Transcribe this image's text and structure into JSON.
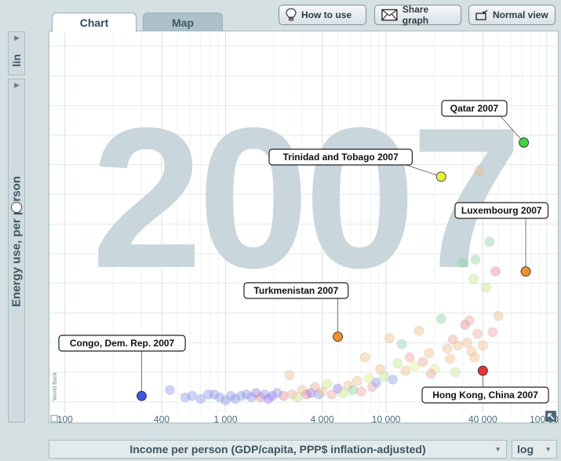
{
  "tabs": [
    {
      "label": "Chart",
      "active": true
    },
    {
      "label": "Map",
      "active": false
    }
  ],
  "toolbar": {
    "how_to_use": "How to use",
    "share_graph": "Share graph",
    "normal_view": "Normal view"
  },
  "side": {
    "scale_label": "lin"
  },
  "axis_selectors": {
    "x_label": "Income per person (GDP/capita, PPP$ inflation-adjusted)",
    "x_scale": "log"
  },
  "watermark": {
    "year": "2007",
    "source": "World Bank"
  },
  "colors": {
    "accent": "#4a6a78",
    "panel": "#d5e0e3"
  },
  "chart_data": {
    "type": "scatter",
    "xlabel": "Income per person (GDP/capita, PPP$ inflation-adjusted)",
    "ylabel": "Energy use, per person",
    "x_scale": "log",
    "xlim": [
      80,
      120000
    ],
    "ylim": [
      -1.5,
      25
    ],
    "x_ticks": [
      100,
      400,
      1000,
      4000,
      10000,
      40000,
      100000
    ],
    "x_tick_labels": [
      "100",
      "400",
      "1 000",
      "4 000",
      "10 000",
      "40 000",
      "100 000"
    ],
    "y_ticks": [
      0,
      2,
      4,
      6,
      8,
      10,
      12,
      14,
      16,
      18,
      20,
      22,
      24
    ],
    "grid": true,
    "highlighted": [
      {
        "label": "Qatar 2007",
        "x": 72000,
        "y": 17.5,
        "color": "#3ed43a"
      },
      {
        "label": "Trinidad and Tobago 2007",
        "x": 22000,
        "y": 15.2,
        "color": "#e9f23a"
      },
      {
        "label": "Luxembourg 2007",
        "x": 74000,
        "y": 8.8,
        "color": "#f28f2e"
      },
      {
        "label": "Turkmenistan 2007",
        "x": 5000,
        "y": 4.4,
        "color": "#f28f2e"
      },
      {
        "label": "Congo, Dem. Rep. 2007",
        "x": 300,
        "y": 0.4,
        "color": "#3d55e0"
      },
      {
        "label": "Hong Kong, China 2007",
        "x": 40000,
        "y": 2.1,
        "color": "#e6323a"
      }
    ],
    "background_points": [
      {
        "x": 450,
        "y": 0.8,
        "c": "#8e9cf0"
      },
      {
        "x": 560,
        "y": 0.3,
        "c": "#8e9cf0"
      },
      {
        "x": 620,
        "y": 0.4,
        "c": "#8e9cf0"
      },
      {
        "x": 700,
        "y": 0.2,
        "c": "#8e9cf0"
      },
      {
        "x": 780,
        "y": 0.5,
        "c": "#8e9cf0"
      },
      {
        "x": 850,
        "y": 0.5,
        "c": "#8e9cf0"
      },
      {
        "x": 920,
        "y": 0.3,
        "c": "#8e9cf0"
      },
      {
        "x": 1000,
        "y": 0.1,
        "c": "#8e9cf0"
      },
      {
        "x": 1080,
        "y": 0.4,
        "c": "#8e9cf0"
      },
      {
        "x": 1150,
        "y": 0.2,
        "c": "#8e9cf0"
      },
      {
        "x": 1250,
        "y": 0.4,
        "c": "#8e9cf0"
      },
      {
        "x": 1350,
        "y": 0.5,
        "c": "#8e9cf0"
      },
      {
        "x": 1450,
        "y": 0.3,
        "c": "#8e9cf0"
      },
      {
        "x": 1550,
        "y": 0.6,
        "c": "#9b7ef0"
      },
      {
        "x": 1650,
        "y": 0.3,
        "c": "#e88a9a"
      },
      {
        "x": 1750,
        "y": 0.5,
        "c": "#8e9cf0"
      },
      {
        "x": 1850,
        "y": 0.2,
        "c": "#9b7ef0"
      },
      {
        "x": 1950,
        "y": 0.4,
        "c": "#9b7ef0"
      },
      {
        "x": 2100,
        "y": 0.6,
        "c": "#8e9cf0"
      },
      {
        "x": 2300,
        "y": 0.4,
        "c": "#e88a9a"
      },
      {
        "x": 2500,
        "y": 1.8,
        "c": "#f4c08a"
      },
      {
        "x": 2600,
        "y": 0.5,
        "c": "#f4a8a0"
      },
      {
        "x": 2800,
        "y": 0.3,
        "c": "#c7e88a"
      },
      {
        "x": 3000,
        "y": 0.8,
        "c": "#f4c08a"
      },
      {
        "x": 3200,
        "y": 0.5,
        "c": "#e88a9a"
      },
      {
        "x": 3400,
        "y": 0.6,
        "c": "#9b7ef0"
      },
      {
        "x": 3600,
        "y": 1.0,
        "c": "#f4a8a0"
      },
      {
        "x": 3800,
        "y": 0.5,
        "c": "#8e9cf0"
      },
      {
        "x": 4000,
        "y": 0.7,
        "c": "#f4c08a"
      },
      {
        "x": 4300,
        "y": 1.2,
        "c": "#c7e88a"
      },
      {
        "x": 4600,
        "y": 0.5,
        "c": "#f4a8a0"
      },
      {
        "x": 5000,
        "y": 0.9,
        "c": "#9b7ef0"
      },
      {
        "x": 5400,
        "y": 0.6,
        "c": "#c7e88a"
      },
      {
        "x": 5800,
        "y": 1.1,
        "c": "#f4c08a"
      },
      {
        "x": 6200,
        "y": 0.8,
        "c": "#8ed8a0"
      },
      {
        "x": 6600,
        "y": 1.4,
        "c": "#f4c08a"
      },
      {
        "x": 7000,
        "y": 0.7,
        "c": "#f4a8a0"
      },
      {
        "x": 7400,
        "y": 3.0,
        "c": "#f4c08a"
      },
      {
        "x": 7800,
        "y": 1.6,
        "c": "#e8f08a"
      },
      {
        "x": 8200,
        "y": 1.0,
        "c": "#f4a8a0"
      },
      {
        "x": 8700,
        "y": 1.3,
        "c": "#8e9cf0"
      },
      {
        "x": 9200,
        "y": 2.2,
        "c": "#f4c08a"
      },
      {
        "x": 9800,
        "y": 1.7,
        "c": "#c7e88a"
      },
      {
        "x": 10500,
        "y": 4.3,
        "c": "#f4c08a"
      },
      {
        "x": 11000,
        "y": 1.5,
        "c": "#8e9cf0"
      },
      {
        "x": 11800,
        "y": 2.6,
        "c": "#c7e88a"
      },
      {
        "x": 12500,
        "y": 3.9,
        "c": "#8ed8a0"
      },
      {
        "x": 13200,
        "y": 2.1,
        "c": "#f4c08a"
      },
      {
        "x": 14000,
        "y": 3.0,
        "c": "#f4a8a0"
      },
      {
        "x": 15000,
        "y": 2.4,
        "c": "#e8f08a"
      },
      {
        "x": 16000,
        "y": 4.8,
        "c": "#f4c08a"
      },
      {
        "x": 17000,
        "y": 2.7,
        "c": "#f4a8a0"
      },
      {
        "x": 18500,
        "y": 3.3,
        "c": "#f4c08a"
      },
      {
        "x": 20000,
        "y": 2.2,
        "c": "#e8f08a"
      },
      {
        "x": 22000,
        "y": 5.6,
        "c": "#8ed8a0"
      },
      {
        "x": 24000,
        "y": 3.6,
        "c": "#f4c08a"
      },
      {
        "x": 26000,
        "y": 4.2,
        "c": "#f4a8a0"
      },
      {
        "x": 28000,
        "y": 3.8,
        "c": "#f4c08a"
      },
      {
        "x": 30000,
        "y": 9.4,
        "c": "#8ed8a0"
      },
      {
        "x": 31000,
        "y": 5.2,
        "c": "#e88a9a"
      },
      {
        "x": 32000,
        "y": 4.0,
        "c": "#f4c08a"
      },
      {
        "x": 33000,
        "y": 5.5,
        "c": "#f4a8a0"
      },
      {
        "x": 34000,
        "y": 3.4,
        "c": "#f4c08a"
      },
      {
        "x": 35000,
        "y": 8.3,
        "c": "#c7e88a"
      },
      {
        "x": 36000,
        "y": 9.6,
        "c": "#8ed8a0"
      },
      {
        "x": 37000,
        "y": 4.6,
        "c": "#f4a8a0"
      },
      {
        "x": 38000,
        "y": 15.6,
        "c": "#f4c08a"
      },
      {
        "x": 40000,
        "y": 3.8,
        "c": "#f4c08a"
      },
      {
        "x": 42000,
        "y": 7.7,
        "c": "#c7e88a"
      },
      {
        "x": 44000,
        "y": 10.8,
        "c": "#8ed8a0"
      },
      {
        "x": 46000,
        "y": 4.7,
        "c": "#f4a8a0"
      },
      {
        "x": 48000,
        "y": 8.8,
        "c": "#e88a9a"
      },
      {
        "x": 50000,
        "y": 5.8,
        "c": "#f4c08a"
      },
      {
        "x": 27000,
        "y": 2.0,
        "c": "#c7e88a"
      },
      {
        "x": 25000,
        "y": 2.9,
        "c": "#f4c08a"
      },
      {
        "x": 19000,
        "y": 1.9,
        "c": "#f4a8a0"
      },
      {
        "x": 35500,
        "y": 3.0,
        "c": "#f4c08a"
      }
    ]
  }
}
